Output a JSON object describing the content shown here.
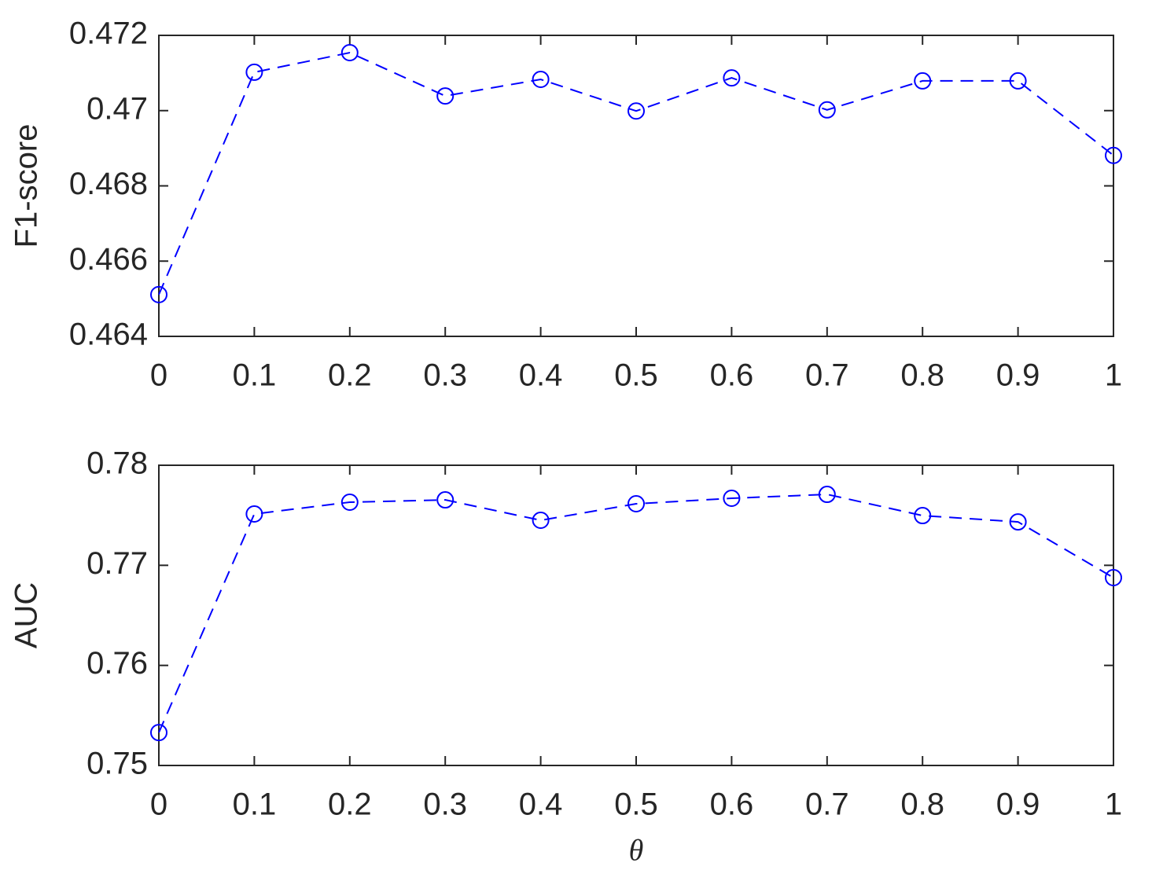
{
  "chart_data": [
    {
      "type": "line",
      "ylabel": "F1-score",
      "color": "#0000ff",
      "x": [
        0,
        0.1,
        0.2,
        0.3,
        0.4,
        0.5,
        0.6,
        0.7,
        0.8,
        0.9,
        1
      ],
      "values": [
        0.46511,
        0.47102,
        0.47154,
        0.47039,
        0.47083,
        0.46999,
        0.47087,
        0.47002,
        0.47079,
        0.47079,
        0.46881
      ],
      "xlim": [
        0,
        1
      ],
      "xticks": [
        0,
        0.1,
        0.2,
        0.3,
        0.4,
        0.5,
        0.6,
        0.7,
        0.8,
        0.9,
        1
      ],
      "ylim": [
        0.464,
        0.472
      ],
      "yticks": [
        0.464,
        0.466,
        0.468,
        0.47,
        0.472
      ]
    },
    {
      "type": "line",
      "ylabel": "AUC",
      "xlabel": "θ",
      "color": "#0000ff",
      "x": [
        0,
        0.1,
        0.2,
        0.3,
        0.4,
        0.5,
        0.6,
        0.7,
        0.8,
        0.9,
        1
      ],
      "values": [
        0.75329,
        0.77513,
        0.77631,
        0.77654,
        0.7745,
        0.77615,
        0.7767,
        0.77709,
        0.77497,
        0.77434,
        0.76877
      ],
      "xlim": [
        0,
        1
      ],
      "xticks": [
        0,
        0.1,
        0.2,
        0.3,
        0.4,
        0.5,
        0.6,
        0.7,
        0.8,
        0.9,
        1
      ],
      "ylim": [
        0.75,
        0.78
      ],
      "yticks": [
        0.75,
        0.76,
        0.77,
        0.78
      ]
    }
  ]
}
